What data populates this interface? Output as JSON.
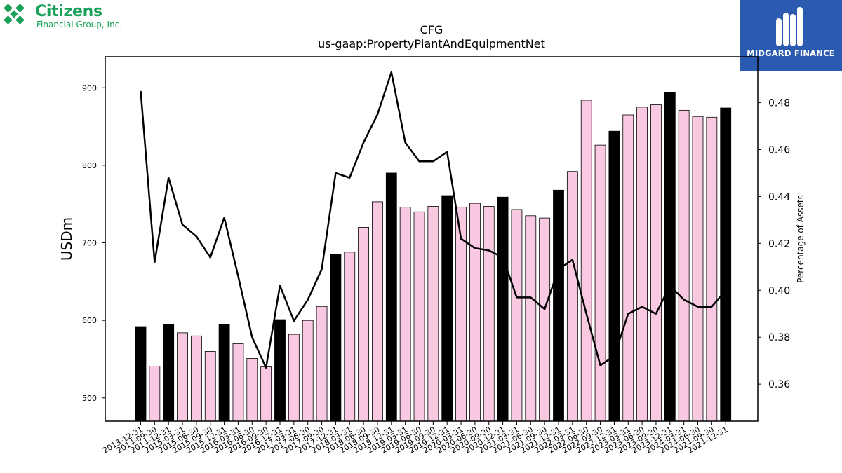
{
  "logos": {
    "left_name": "Citizens",
    "left_sub": "Financial Group, Inc.",
    "right_text": "MIDGARD FINANCE"
  },
  "chart_data": {
    "type": "bar",
    "title": "CFG",
    "subtitle": "us-gaap:PropertyPlantAndEquipmentNet",
    "ylabel": "USDm",
    "y2label": "Percentage of Assets",
    "ylim": [
      470,
      940
    ],
    "y2lim": [
      0.3442,
      0.4996
    ],
    "yticks": [
      500,
      600,
      700,
      800,
      900
    ],
    "y2ticks": [
      0.36,
      0.38,
      0.4,
      0.42,
      0.44,
      0.46,
      0.48
    ],
    "y2tick_labels": [
      "0.36",
      "0.38",
      "0.40",
      "0.42",
      "0.44",
      "0.46",
      "0.48"
    ],
    "colors": {
      "annual": "#000000",
      "quarter": "#f9c9e1",
      "line": "#000000"
    },
    "categories": [
      "2013-12-31",
      "2014-09-30",
      "2014-12-31",
      "2015-03-31",
      "2015-06-30",
      "2015-09-30",
      "2015-12-31",
      "2016-03-31",
      "2016-06-30",
      "2016-09-30",
      "2016-12-31",
      "2017-03-31",
      "2017-06-30",
      "2017-09-30",
      "2017-12-31",
      "2018-03-31",
      "2018-06-30",
      "2018-09-30",
      "2018-12-31",
      "2019-03-31",
      "2019-06-30",
      "2019-09-30",
      "2019-12-31",
      "2020-03-31",
      "2020-06-30",
      "2020-09-30",
      "2020-12-31",
      "2021-03-31",
      "2021-06-30",
      "2021-09-30",
      "2021-12-31",
      "2022-03-31",
      "2022-06-30",
      "2022-09-30",
      "2022-12-31",
      "2023-03-31",
      "2023-06-30",
      "2023-09-30",
      "2023-12-31",
      "2024-03-31",
      "2024-06-30",
      "2024-09-30",
      "2024-12-31"
    ],
    "series": [
      {
        "type": "bar",
        "values": [
          592,
          541,
          595,
          584,
          580,
          560,
          595,
          570,
          551,
          540,
          601,
          582,
          600,
          618,
          685,
          688,
          720,
          753,
          790,
          746,
          740,
          747,
          761,
          746,
          751,
          747,
          759,
          743,
          735,
          732,
          768,
          792,
          884,
          826,
          844,
          865,
          875,
          878,
          894,
          871,
          863,
          862,
          874
        ],
        "annual": [
          true,
          false,
          true,
          false,
          false,
          false,
          true,
          false,
          false,
          false,
          true,
          false,
          false,
          false,
          true,
          false,
          false,
          false,
          true,
          false,
          false,
          false,
          true,
          false,
          false,
          false,
          true,
          false,
          false,
          false,
          true,
          false,
          false,
          false,
          true,
          false,
          false,
          false,
          true,
          false,
          false,
          false,
          true
        ]
      },
      {
        "type": "line",
        "axis": "right",
        "values": [
          0.485,
          0.412,
          0.448,
          0.428,
          0.423,
          0.414,
          0.431,
          0.406,
          0.38,
          0.367,
          0.402,
          0.387,
          0.396,
          0.409,
          0.45,
          0.448,
          0.463,
          0.475,
          0.493,
          0.463,
          0.455,
          0.455,
          0.459,
          0.422,
          0.418,
          0.417,
          0.414,
          0.397,
          0.397,
          0.392,
          0.409,
          0.413,
          0.39,
          0.368,
          0.372,
          0.39,
          0.393,
          0.39,
          0.402,
          0.396,
          0.393,
          0.393,
          0.4
        ]
      }
    ]
  }
}
